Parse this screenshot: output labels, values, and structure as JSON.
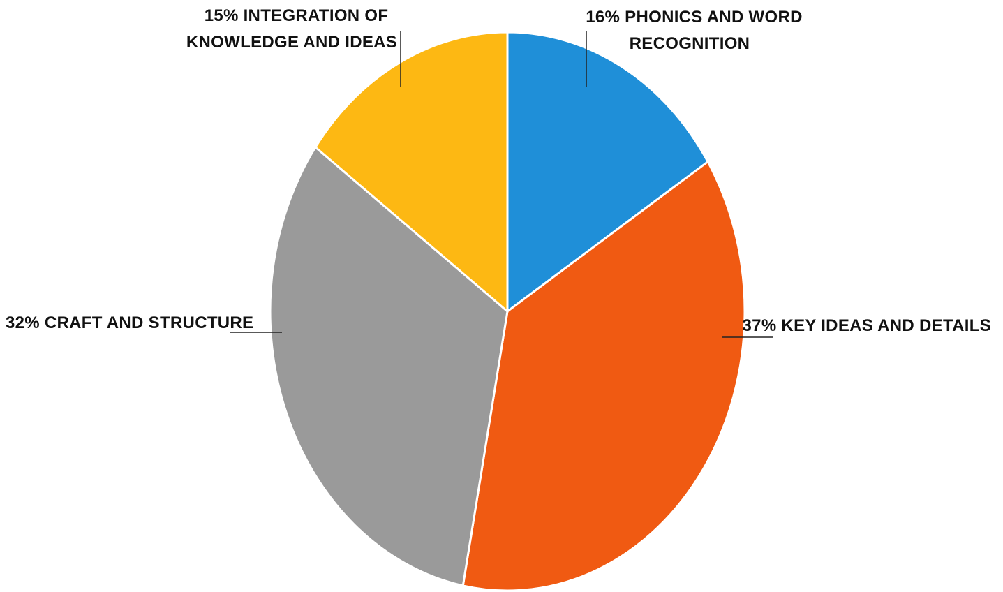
{
  "chart_data": {
    "type": "pie",
    "title": "",
    "slices": [
      {
        "label": "PHONICS AND WORD RECOGNITION",
        "value": 16,
        "percent_label": "16%",
        "color": "#1f8fd8"
      },
      {
        "label": "KEY IDEAS AND DETAILS",
        "value": 37,
        "percent_label": "37%",
        "color": "#f05a12"
      },
      {
        "label": "CRAFT AND STRUCTURE",
        "value": 32,
        "percent_label": "32%",
        "color": "#9a9a9a"
      },
      {
        "label": "INTEGRATION OF KNOWLEDGE AND IDEAS",
        "value": 15,
        "percent_label": "15%",
        "color": "#fdb813"
      }
    ],
    "labels": {
      "phonics": {
        "line1": "16% PHONICS AND WORD",
        "line2": "RECOGNITION"
      },
      "key_ideas": {
        "line1": "37% KEY IDEAS AND DETAILS"
      },
      "craft": {
        "line1": "32% CRAFT AND STRUCTURE"
      },
      "integration": {
        "line1": "15% INTEGRATION OF",
        "line2": "KNOWLEDGE AND IDEAS"
      }
    },
    "start_angle": "12 o'clock",
    "direction": "clockwise",
    "legend": "none"
  }
}
